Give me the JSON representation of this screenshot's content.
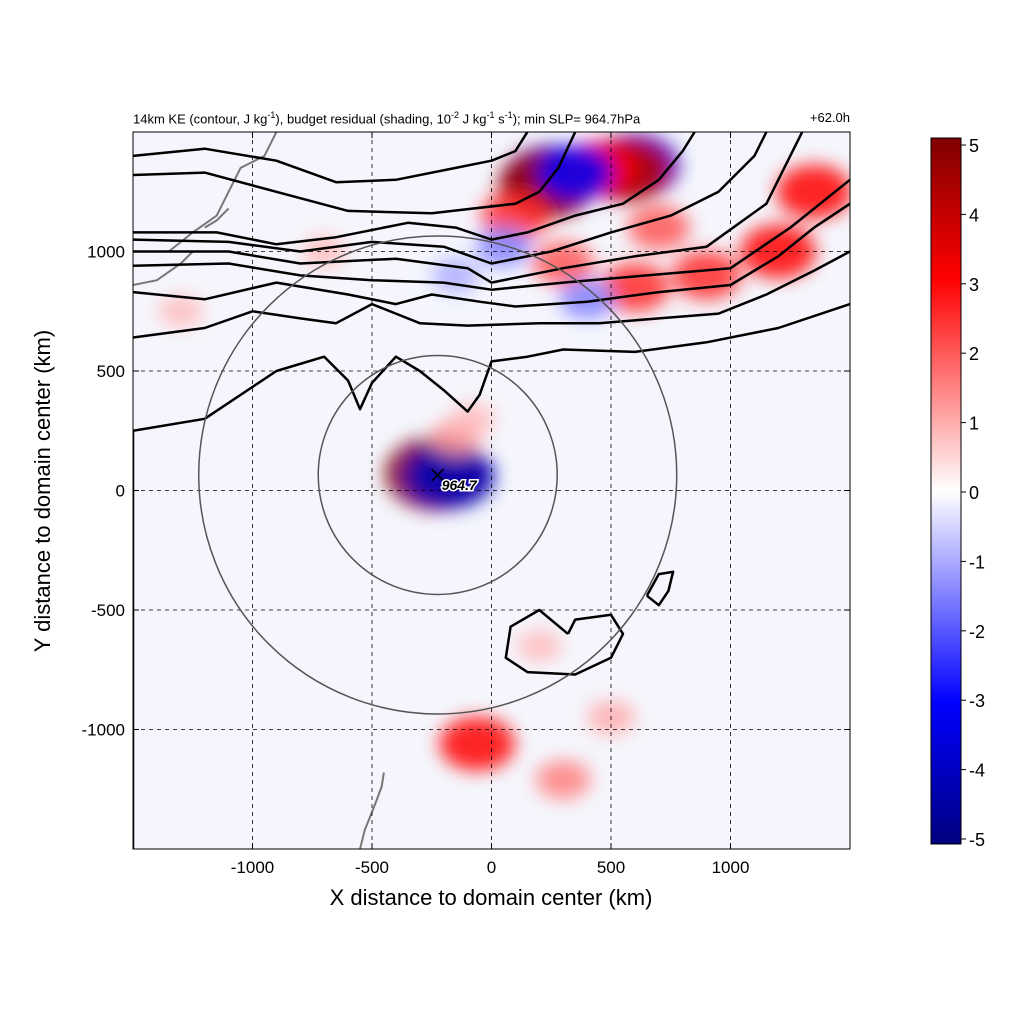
{
  "chart_data": {
    "type": "heatmap",
    "title_parts": {
      "a": "14km KE (contour, J kg",
      "a_sup": "-1",
      "b": "), budget residual (shading, 10",
      "b_sup": "-2",
      "c": " J kg",
      "c_sup": "-1",
      "d": " s",
      "d_sup": "-1",
      "e": "); min SLP= 964.7hPa"
    },
    "time_label": "+62.0h",
    "xlabel": "X distance to domain center (km)",
    "ylabel": "Y distance to domain center (km)",
    "xlim": [
      -1500,
      1500
    ],
    "ylim": [
      -1500,
      1500
    ],
    "xticks": [
      -1000,
      -500,
      0,
      500,
      1000
    ],
    "yticks": [
      -1000,
      -500,
      0,
      500,
      1000
    ],
    "grid": "dashed",
    "colorbar": {
      "ticks": [
        5,
        4,
        3,
        2,
        1,
        0,
        -1,
        -2,
        -3,
        -4,
        -5
      ],
      "range": [
        -5,
        5
      ],
      "colors": [
        "#00007f",
        "#0000ff",
        "#ffffff",
        "#ff0000",
        "#7f0000"
      ]
    },
    "center_marker": {
      "x": -225,
      "y": 65,
      "label": "964.7"
    },
    "radius_circles": [
      {
        "cx": -225,
        "cy": 65,
        "r": 500
      },
      {
        "cx": -225,
        "cy": 65,
        "r": 1000
      }
    ],
    "shading_blobs": [
      {
        "x": 250,
        "y": 1300,
        "v": -4.5
      },
      {
        "x": 230,
        "y": 1280,
        "v": 4.5
      },
      {
        "x": 600,
        "y": 1360,
        "v": -4
      },
      {
        "x": 560,
        "y": 1340,
        "v": 4
      },
      {
        "x": 450,
        "y": 1350,
        "v": 3
      },
      {
        "x": 350,
        "y": 1330,
        "v": -3
      },
      {
        "x": 100,
        "y": 1150,
        "v": 2.5
      },
      {
        "x": 50,
        "y": 1020,
        "v": -1.5
      },
      {
        "x": 300,
        "y": 950,
        "v": 2
      },
      {
        "x": 600,
        "y": 850,
        "v": 2.5
      },
      {
        "x": 900,
        "y": 900,
        "v": 2.5
      },
      {
        "x": 1200,
        "y": 1000,
        "v": 3
      },
      {
        "x": 1350,
        "y": 1250,
        "v": 3
      },
      {
        "x": 700,
        "y": 1100,
        "v": 2
      },
      {
        "x": 400,
        "y": 800,
        "v": -1.5
      },
      {
        "x": -150,
        "y": 900,
        "v": -1
      },
      {
        "x": -700,
        "y": 1000,
        "v": 0.8
      },
      {
        "x": -1300,
        "y": 750,
        "v": 0.8
      },
      {
        "x": -230,
        "y": 70,
        "v": 5
      },
      {
        "x": -175,
        "y": 60,
        "v": -4
      },
      {
        "x": -150,
        "y": 220,
        "v": 1.2
      },
      {
        "x": -80,
        "y": 300,
        "v": 0.8
      },
      {
        "x": -60,
        "y": -1060,
        "v": 3
      },
      {
        "x": 300,
        "y": -1210,
        "v": 1.5
      },
      {
        "x": 500,
        "y": -950,
        "v": 1
      },
      {
        "x": 200,
        "y": -650,
        "v": 0.8
      }
    ],
    "ke_contours": [
      [
        [
          -1500,
          1400
        ],
        [
          -1200,
          1430
        ],
        [
          -900,
          1380
        ],
        [
          -650,
          1290
        ],
        [
          -400,
          1300
        ],
        [
          -150,
          1350
        ],
        [
          0,
          1380
        ],
        [
          100,
          1420
        ],
        [
          150,
          1500
        ]
      ],
      [
        [
          -1500,
          1320
        ],
        [
          -1200,
          1330
        ],
        [
          -900,
          1250
        ],
        [
          -600,
          1170
        ],
        [
          -250,
          1160
        ],
        [
          100,
          1200
        ],
        [
          200,
          1250
        ],
        [
          280,
          1350
        ],
        [
          350,
          1500
        ]
      ],
      [
        [
          -1500,
          1080
        ],
        [
          -1150,
          1080
        ],
        [
          -900,
          1030
        ],
        [
          -650,
          1060
        ],
        [
          -350,
          1120
        ],
        [
          -150,
          1100
        ],
        [
          0,
          1050
        ],
        [
          150,
          1080
        ],
        [
          350,
          1150
        ],
        [
          550,
          1200
        ],
        [
          700,
          1300
        ],
        [
          800,
          1420
        ],
        [
          850,
          1500
        ]
      ],
      [
        [
          -1500,
          1050
        ],
        [
          -1100,
          1040
        ],
        [
          -800,
          1000
        ],
        [
          -500,
          1040
        ],
        [
          -200,
          1020
        ],
        [
          0,
          950
        ],
        [
          250,
          1000
        ],
        [
          500,
          1080
        ],
        [
          750,
          1150
        ],
        [
          950,
          1250
        ],
        [
          1100,
          1400
        ],
        [
          1150,
          1500
        ]
      ],
      [
        [
          -1500,
          1000
        ],
        [
          -1100,
          1000
        ],
        [
          -800,
          950
        ],
        [
          -400,
          970
        ],
        [
          -100,
          930
        ],
        [
          0,
          870
        ],
        [
          300,
          930
        ],
        [
          600,
          980
        ],
        [
          900,
          1020
        ],
        [
          1150,
          1200
        ],
        [
          1300,
          1500
        ]
      ],
      [
        [
          -1500,
          940
        ],
        [
          -1100,
          950
        ],
        [
          -800,
          900
        ],
        [
          -500,
          880
        ],
        [
          -200,
          870
        ],
        [
          0,
          840
        ],
        [
          300,
          870
        ],
        [
          650,
          900
        ],
        [
          1000,
          930
        ],
        [
          1250,
          1100
        ],
        [
          1500,
          1300
        ]
      ],
      [
        [
          -1500,
          830
        ],
        [
          -1200,
          800
        ],
        [
          -900,
          870
        ],
        [
          -600,
          820
        ],
        [
          -400,
          780
        ],
        [
          -250,
          820
        ],
        [
          -50,
          790
        ],
        [
          100,
          770
        ],
        [
          400,
          790
        ],
        [
          700,
          830
        ],
        [
          1000,
          860
        ],
        [
          1200,
          980
        ],
        [
          1350,
          1100
        ],
        [
          1500,
          1200
        ]
      ],
      [
        [
          -1500,
          640
        ],
        [
          -1200,
          680
        ],
        [
          -1000,
          750
        ],
        [
          -800,
          720
        ],
        [
          -650,
          700
        ],
        [
          -500,
          780
        ],
        [
          -300,
          700
        ],
        [
          -100,
          690
        ],
        [
          200,
          700
        ],
        [
          450,
          700
        ],
        [
          700,
          720
        ],
        [
          950,
          740
        ],
        [
          1150,
          820
        ],
        [
          1350,
          920
        ],
        [
          1500,
          1000
        ]
      ],
      [
        [
          -1500,
          250
        ],
        [
          -1200,
          300
        ],
        [
          -900,
          500
        ],
        [
          -700,
          560
        ],
        [
          -600,
          460
        ],
        [
          -550,
          340
        ],
        [
          -500,
          450
        ],
        [
          -400,
          560
        ],
        [
          -300,
          500
        ],
        [
          -200,
          420
        ],
        [
          -100,
          330
        ],
        [
          -50,
          400
        ],
        [
          0,
          540
        ],
        [
          150,
          560
        ],
        [
          300,
          590
        ],
        [
          600,
          580
        ],
        [
          900,
          620
        ],
        [
          1200,
          680
        ],
        [
          1500,
          780
        ]
      ],
      [
        [
          -1500,
          -1500
        ],
        [
          -1500,
          250
        ]
      ],
      [
        [
          320,
          -600
        ],
        [
          200,
          -500
        ],
        [
          80,
          -570
        ],
        [
          60,
          -700
        ],
        [
          150,
          -760
        ],
        [
          350,
          -770
        ],
        [
          500,
          -700
        ],
        [
          550,
          -600
        ],
        [
          500,
          -520
        ],
        [
          350,
          -540
        ],
        [
          320,
          -600
        ]
      ],
      [
        [
          650,
          -440
        ],
        [
          700,
          -350
        ],
        [
          760,
          -340
        ],
        [
          740,
          -420
        ],
        [
          700,
          -480
        ],
        [
          650,
          -440
        ]
      ]
    ],
    "coastlines": [
      [
        [
          -1500,
          1000
        ],
        [
          -1350,
          1000
        ],
        [
          -1250,
          1080
        ],
        [
          -1150,
          1150
        ],
        [
          -1100,
          1250
        ],
        [
          -1050,
          1350
        ],
        [
          -950,
          1400
        ],
        [
          -900,
          1500
        ]
      ],
      [
        [
          -1500,
          860
        ],
        [
          -1400,
          880
        ],
        [
          -1300,
          950
        ],
        [
          -1250,
          1000
        ]
      ],
      [
        [
          -1200,
          1100
        ],
        [
          -1150,
          1130
        ],
        [
          -1100,
          1180
        ]
      ],
      [
        [
          -450,
          -1180
        ],
        [
          -460,
          -1240
        ],
        [
          -490,
          -1320
        ],
        [
          -530,
          -1420
        ],
        [
          -550,
          -1500
        ]
      ]
    ]
  }
}
